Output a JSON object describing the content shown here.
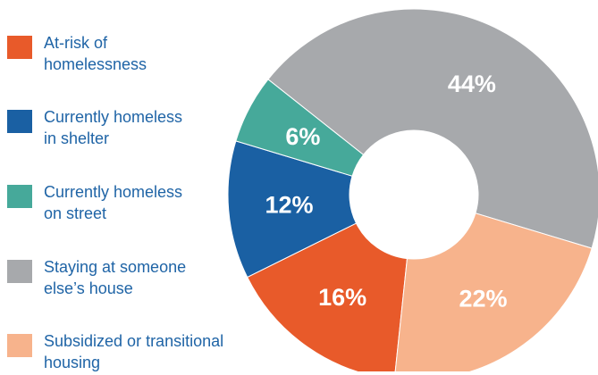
{
  "chart_data": {
    "type": "pie",
    "donut": true,
    "title": "",
    "slices": [
      {
        "label": "At-risk of\nhomelessness",
        "value": 16,
        "display": "16%",
        "color": "#e85a2a",
        "label_color": "#ffffff"
      },
      {
        "label": "Currently homeless\nin shelter",
        "value": 12,
        "display": "12%",
        "color": "#1a60a3",
        "label_color": "#ffffff"
      },
      {
        "label": "Currently homeless\non street",
        "value": 6,
        "display": "6%",
        "color": "#46a99a",
        "label_color": "#ffffff"
      },
      {
        "label": "Staying at someone\nelse’s house",
        "value": 44,
        "display": "44%",
        "color": "#a7a9ac",
        "label_color": "#ffffff"
      },
      {
        "label": "Subsidized or transitional\nhousing",
        "value": 22,
        "display": "22%",
        "color": "#f7b38c",
        "label_color": "#ffffff"
      }
    ],
    "legend_position": "left"
  }
}
